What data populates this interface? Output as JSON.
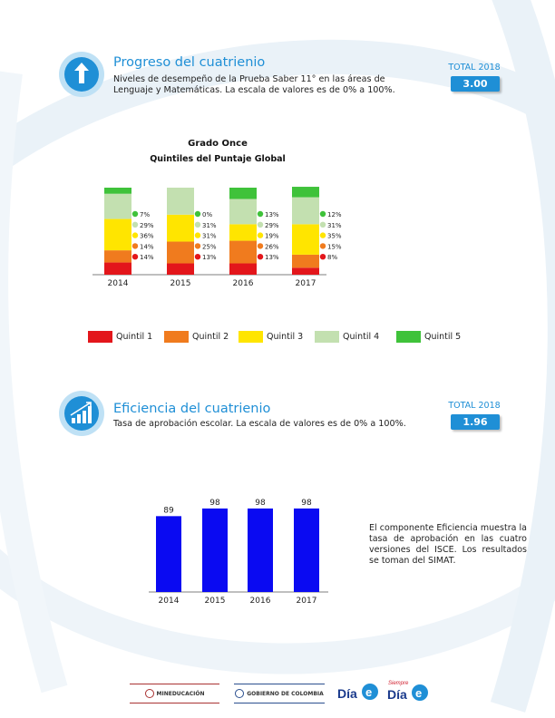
{
  "sections": {
    "progreso": {
      "title": "Progreso del cuatrienio",
      "description": "Niveles de desempeño de la Prueba Saber  11° en las áreas de Lenguaje y Matemáticas. La escala de valores es de 0% a 100%.",
      "total_label": "TOTAL 2018",
      "total_value": "3.00",
      "icon": "arrow-up-icon"
    },
    "eficiencia": {
      "title": "Eficiencia del cuatrienio",
      "description": "Tasa de aprobación escolar. La escala de valores es de 0% a 100%.",
      "total_label": "TOTAL 2018",
      "total_value": "1.96",
      "icon": "bar-growth-icon",
      "note": "El componente Eficiencia muestra la tasa de aprobación en las cuatro versiones del ISCE. Los resultados se toman del SIMAT."
    }
  },
  "colors": {
    "accent": "#1f8fd6",
    "quintil1": "#e3161b",
    "quintil2": "#f07b1e",
    "quintil3": "#ffe500",
    "quintil4": "#c3e0b0",
    "quintil5": "#3fc23a",
    "bar_blue": "#0a0af2"
  },
  "chart_data": [
    {
      "type": "bar",
      "stacked": true,
      "title": "Grado Once",
      "subtitle": "Quintiles del Puntaje Global",
      "categories": [
        "2014",
        "2015",
        "2016",
        "2017"
      ],
      "series": [
        {
          "name": "Quintil 1",
          "values": [
            14,
            13,
            13,
            8
          ],
          "labels": [
            "14%",
            "13%",
            "13%",
            "8%"
          ]
        },
        {
          "name": "Quintil 2",
          "values": [
            14,
            25,
            26,
            15
          ],
          "labels": [
            "14%",
            "25%",
            "26%",
            "15%"
          ]
        },
        {
          "name": "Quintil 3",
          "values": [
            36,
            31,
            19,
            35
          ],
          "labels": [
            "36%",
            "31%",
            "19%",
            "35%"
          ]
        },
        {
          "name": "Quintil 4",
          "values": [
            29,
            31,
            29,
            31
          ],
          "labels": [
            "29%",
            "31%",
            "29%",
            "31%"
          ]
        },
        {
          "name": "Quintil 5",
          "values": [
            7,
            0,
            13,
            12
          ],
          "labels": [
            "7%",
            "0%",
            "13%",
            "12%"
          ]
        }
      ],
      "ylim": [
        0,
        100
      ],
      "legend": "bottom"
    },
    {
      "type": "bar",
      "categories": [
        "2014",
        "2015",
        "2016",
        "2017"
      ],
      "values": [
        89,
        98,
        98,
        98
      ],
      "ylim": [
        0,
        100
      ]
    }
  ],
  "footer": {
    "logo1": "MINEDUCACIÓN",
    "logo2": "GOBIERNO DE COLOMBIA",
    "logo3": "Día E",
    "logo4": "Siempre Día E"
  }
}
